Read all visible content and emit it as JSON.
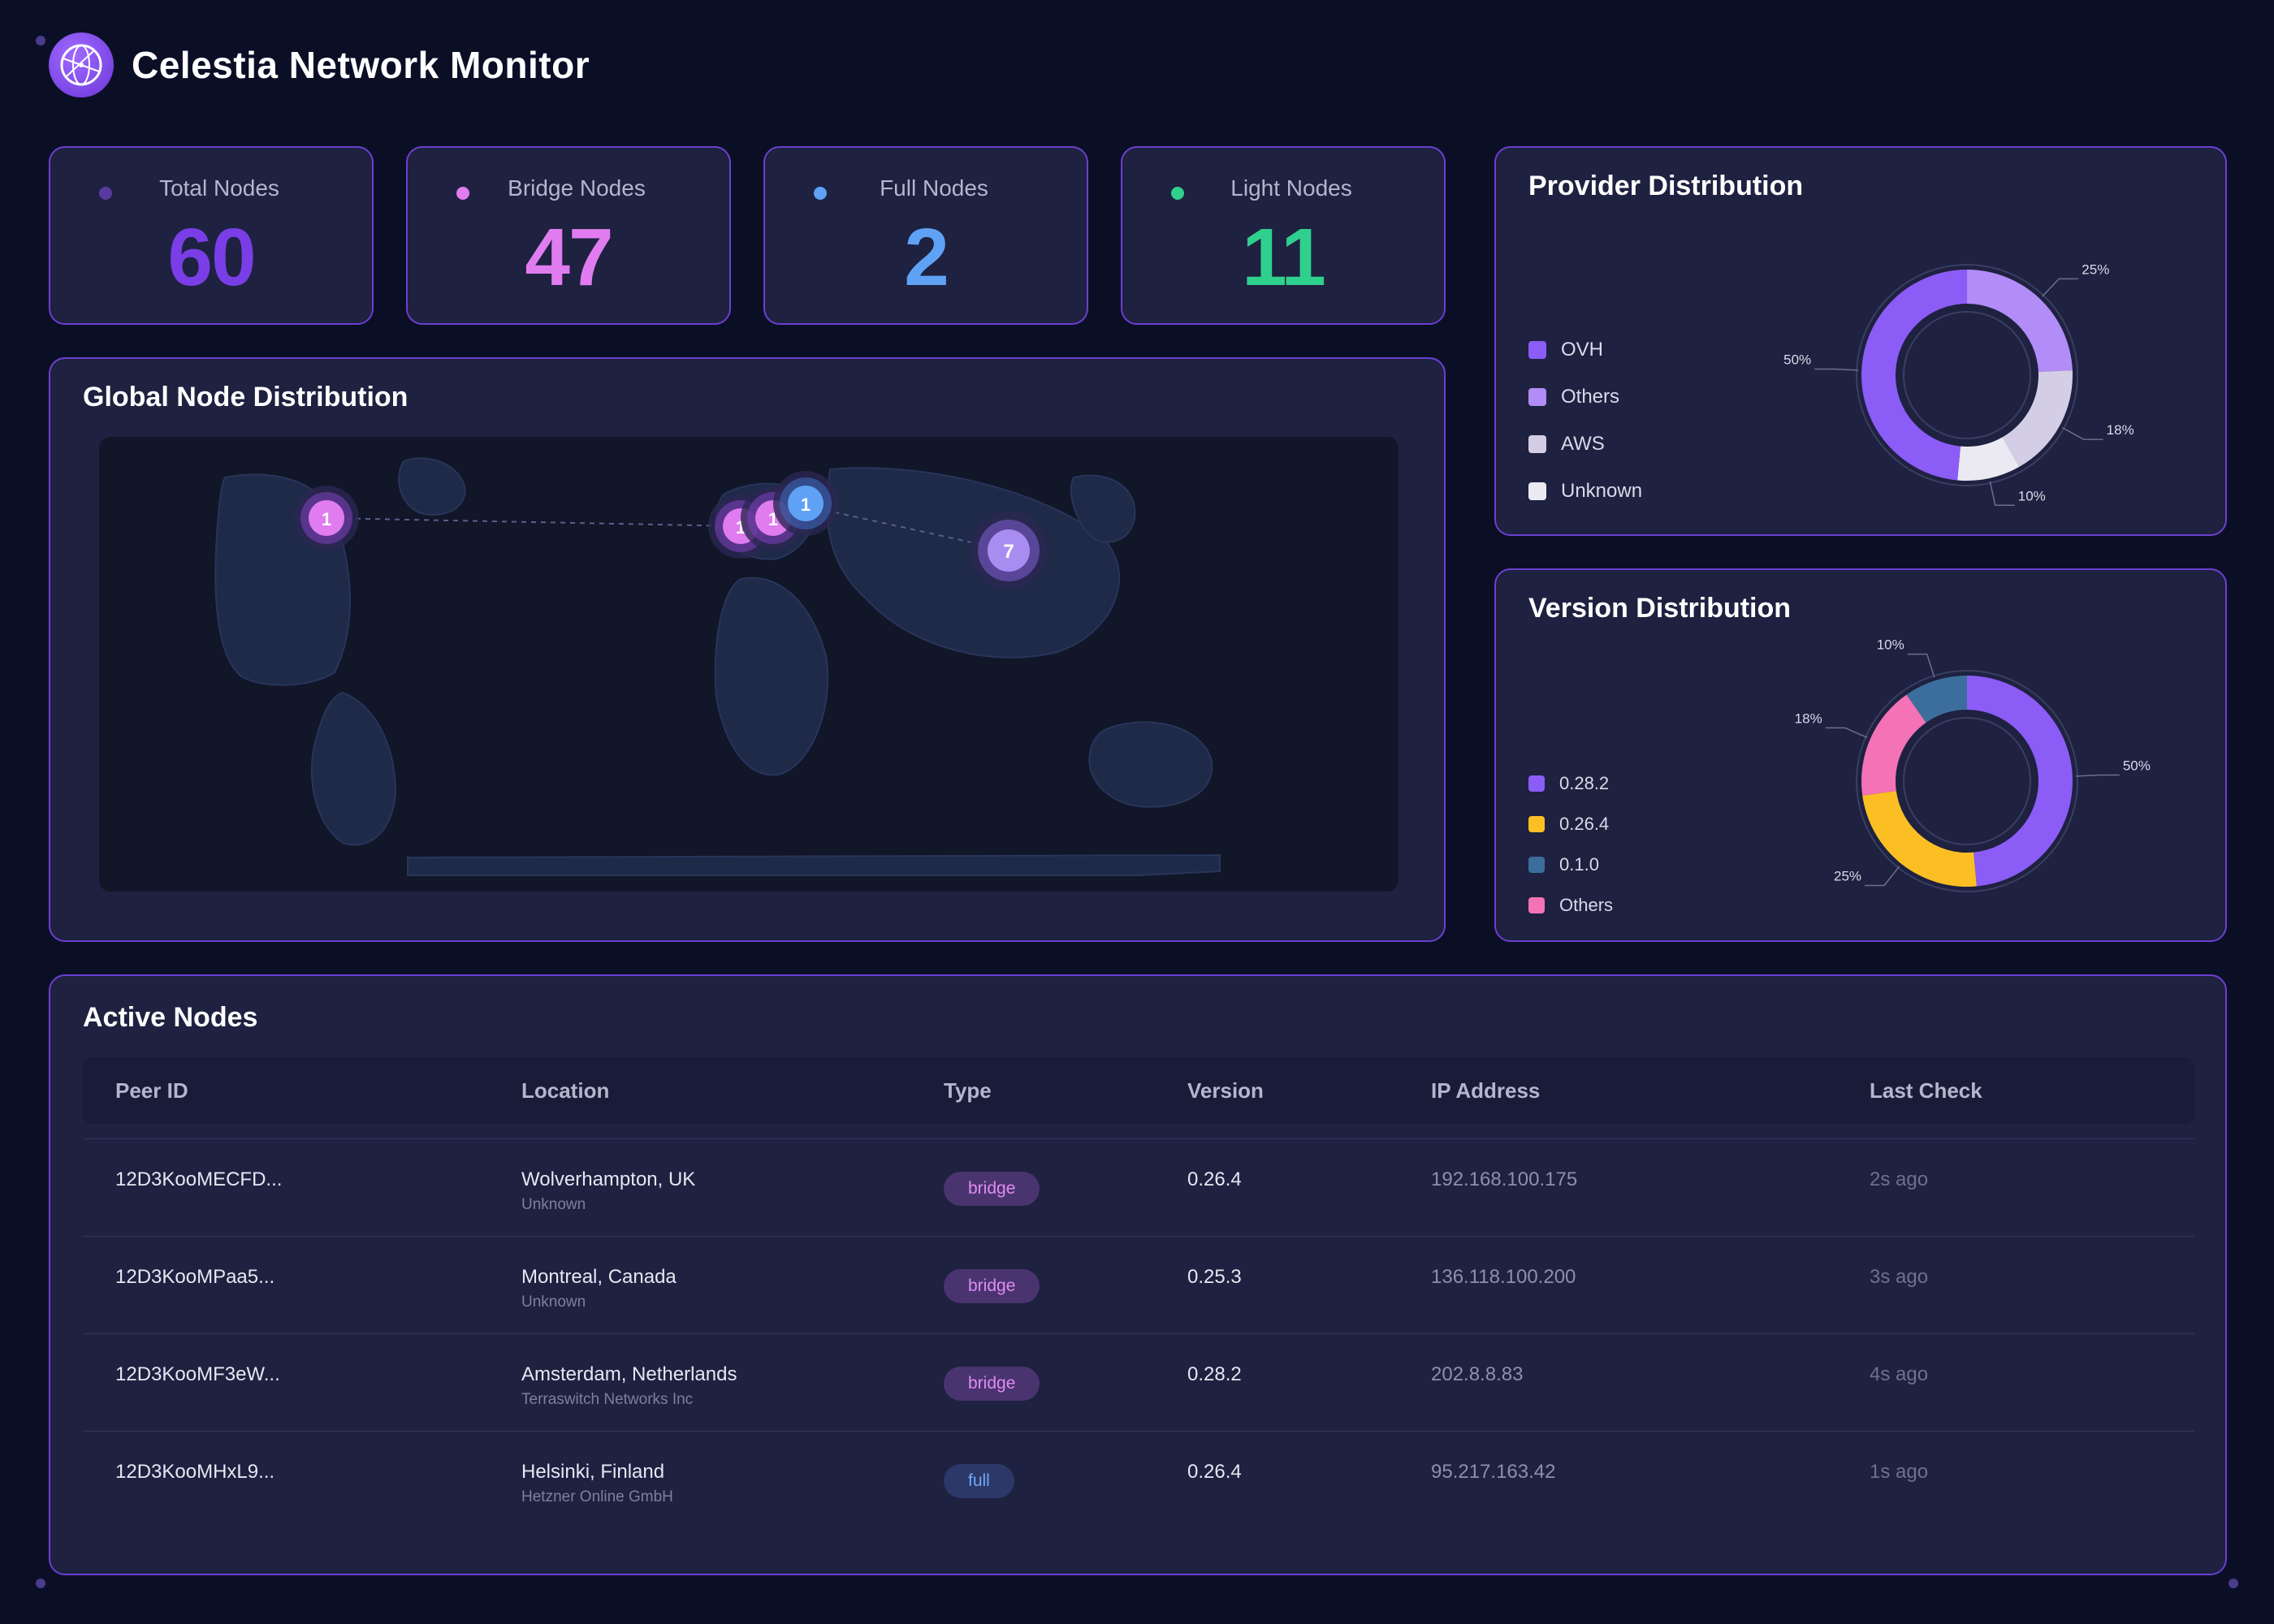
{
  "app": {
    "title": "Celestia Network Monitor",
    "logo_icon": "globe-network-icon"
  },
  "colors": {
    "accent": "#6b3fd0",
    "total": "#7a3ee6",
    "bridge": "#e07cf0",
    "full": "#5fa2f5",
    "light": "#2fcf8e"
  },
  "stats": [
    {
      "label": "Total Nodes",
      "value": "60",
      "color": "#7a3ee6",
      "dot": "#5a3a9e"
    },
    {
      "label": "Bridge Nodes",
      "value": "47",
      "color": "#e07cf0",
      "dot": "#e07cf0"
    },
    {
      "label": "Full Nodes",
      "value": "2",
      "color": "#5fa2f5",
      "dot": "#5fa2f5"
    },
    {
      "label": "Light Nodes",
      "value": "11",
      "color": "#2fcf8e",
      "dot": "#2fcf8e"
    }
  ],
  "map": {
    "title": "Global Node Distribution",
    "markers": [
      {
        "count": "1",
        "kind": "bridge"
      },
      {
        "count": "1",
        "kind": "bridge"
      },
      {
        "count": "1",
        "kind": "bridge"
      },
      {
        "count": "1",
        "kind": "full"
      },
      {
        "count": "7",
        "kind": "light"
      }
    ]
  },
  "provider": {
    "title": "Provider Distribution",
    "legend": [
      {
        "label": "OVH",
        "color": "#8b5cf6"
      },
      {
        "label": "Others",
        "color": "#b28cf7"
      },
      {
        "label": "AWS",
        "color": "#d4cde6"
      },
      {
        "label": "Unknown",
        "color": "#ebe9f2"
      }
    ],
    "slices": [
      {
        "label": "25%",
        "value": 25,
        "color": "#b28cf7"
      },
      {
        "label": "18%",
        "value": 18,
        "color": "#d4cde6"
      },
      {
        "label": "10%",
        "value": 10,
        "color": "#ebe9f2"
      },
      {
        "label": "50%",
        "value": 50,
        "color": "#8b5cf6"
      }
    ]
  },
  "version": {
    "title": "Version Distribution",
    "legend": [
      {
        "label": "0.28.2",
        "color": "#8b5cf6"
      },
      {
        "label": "0.26.4",
        "color": "#fbbf24"
      },
      {
        "label": "0.1.0",
        "color": "#3b6e9c"
      },
      {
        "label": "Others",
        "color": "#f472b6"
      }
    ],
    "slices": [
      {
        "label": "50%",
        "value": 50,
        "color": "#8b5cf6"
      },
      {
        "label": "25%",
        "value": 25,
        "color": "#fbbf24"
      },
      {
        "label": "18%",
        "value": 18,
        "color": "#f472b6"
      },
      {
        "label": "10%",
        "value": 10,
        "color": "#3b6e9c"
      }
    ]
  },
  "table": {
    "title": "Active Nodes",
    "columns": [
      "Peer ID",
      "Location",
      "Type",
      "Version",
      "IP Address",
      "Last Check"
    ],
    "rows": [
      {
        "peer": "12D3KooMECFD...",
        "location": "Wolverhampton, UK",
        "provider": "Unknown",
        "type": "bridge",
        "version": "0.26.4",
        "ip": "192.168.100.175",
        "last": "2s ago"
      },
      {
        "peer": "12D3KooMPaa5...",
        "location": "Montreal, Canada",
        "provider": "Unknown",
        "type": "bridge",
        "version": "0.25.3",
        "ip": "136.118.100.200",
        "last": "3s ago"
      },
      {
        "peer": "12D3KooMF3eW...",
        "location": "Amsterdam, Netherlands",
        "provider": "Terraswitch Networks Inc",
        "type": "bridge",
        "version": "0.28.2",
        "ip": "202.8.8.83",
        "last": "4s ago"
      },
      {
        "peer": "12D3KooMHxL9...",
        "location": "Helsinki, Finland",
        "provider": "Hetzner Online GmbH",
        "type": "full",
        "version": "0.26.4",
        "ip": "95.217.163.42",
        "last": "1s ago"
      }
    ]
  }
}
